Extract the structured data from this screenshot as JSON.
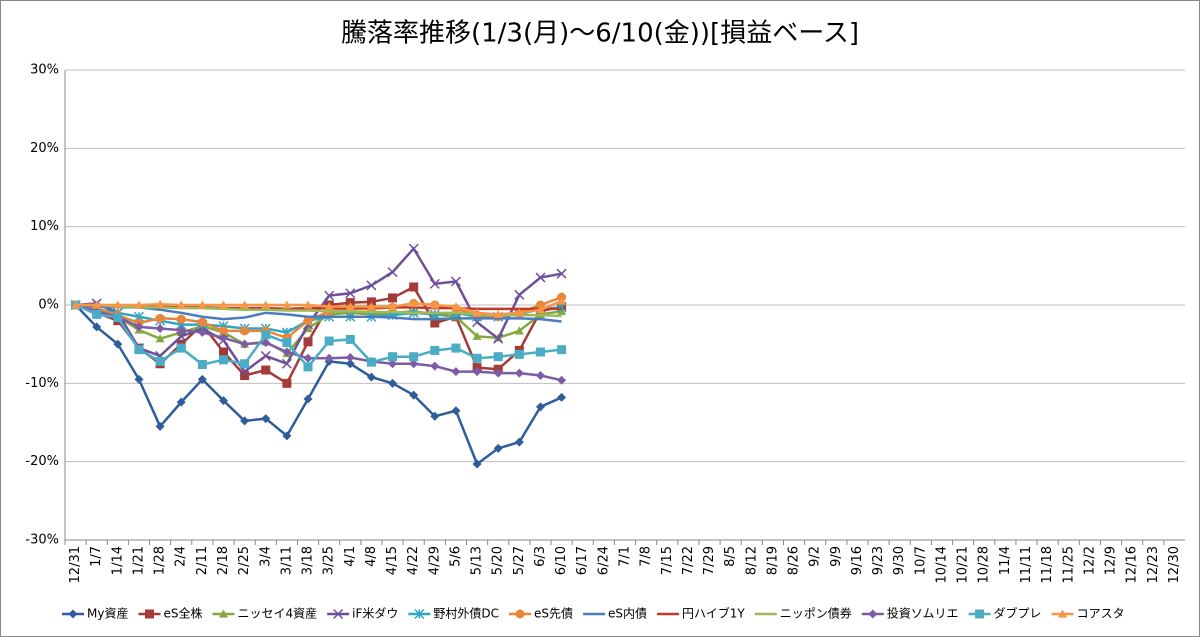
{
  "chart_data": {
    "type": "line",
    "title": "騰落率推移(1/3(月)～6/10(金))[損益ベース]",
    "categories": [
      "12/31",
      "1/7",
      "1/14",
      "1/21",
      "1/28",
      "2/4",
      "2/11",
      "2/18",
      "2/25",
      "3/4",
      "3/11",
      "3/18",
      "3/25",
      "4/1",
      "4/8",
      "4/15",
      "4/22",
      "4/29",
      "5/6",
      "5/13",
      "5/20",
      "5/27",
      "6/3",
      "6/10",
      "6/17",
      "6/24",
      "7/1",
      "7/8",
      "7/15",
      "7/22",
      "7/29",
      "8/5",
      "8/12",
      "8/19",
      "8/26",
      "9/2",
      "9/9",
      "9/16",
      "9/23",
      "9/30",
      "10/7",
      "10/14",
      "10/21",
      "10/28",
      "11/4",
      "11/11",
      "11/18",
      "11/25",
      "12/2",
      "12/9",
      "12/16",
      "12/23",
      "12/30"
    ],
    "ylim": [
      -30,
      30
    ],
    "yticks": [
      {
        "value": -30,
        "label": "-30%"
      },
      {
        "value": -20,
        "label": "-20%"
      },
      {
        "value": -10,
        "label": "-10%"
      },
      {
        "value": 0,
        "label": "0%"
      },
      {
        "value": 10,
        "label": "10%"
      },
      {
        "value": 20,
        "label": "20%"
      },
      {
        "value": 30,
        "label": "30%"
      }
    ],
    "grid": true,
    "legend": "bottom",
    "series": [
      {
        "name": "My資産",
        "color": "#2f5d9b",
        "marker": "diamond",
        "values": [
          0,
          -2.8,
          -5,
          -9.5,
          -15.5,
          -12.4,
          -9.5,
          -12.2,
          -14.8,
          -14.5,
          -16.7,
          -12,
          -7.2,
          -7.5,
          -9.2,
          -10,
          -11.5,
          -14.2,
          -13.5,
          -20.3,
          -18.3,
          -17.5,
          -13,
          -11.8,
          null,
          null,
          null,
          null,
          null,
          null,
          null,
          null,
          null,
          null,
          null,
          null,
          null,
          null,
          null,
          null,
          null,
          null,
          null,
          null,
          null,
          null,
          null,
          null,
          null,
          null,
          null,
          null,
          null
        ]
      },
      {
        "name": "eS全株",
        "color": "#a33b37",
        "marker": "square",
        "values": [
          0,
          -1,
          -2,
          -5.5,
          -7.5,
          -5,
          -2.5,
          -6,
          -9,
          -8.3,
          -10,
          -4.7,
          0,
          0.3,
          0.4,
          0.9,
          2.3,
          -2.3,
          -1.5,
          -8,
          -8.2,
          -5.8,
          -0.8,
          -0.2,
          null,
          null,
          null,
          null,
          null,
          null,
          null,
          null,
          null,
          null,
          null,
          null,
          null,
          null,
          null,
          null,
          null,
          null,
          null,
          null,
          null,
          null,
          null,
          null,
          null,
          null,
          null,
          null,
          null
        ]
      },
      {
        "name": "ニッセイ4資産",
        "color": "#86a840",
        "marker": "triangle",
        "values": [
          0,
          -0.8,
          -1.5,
          -3.2,
          -4.3,
          -3.5,
          -2.7,
          -3.5,
          -5,
          -4.7,
          -6.2,
          -3,
          -1.2,
          -1,
          -1.2,
          -1,
          -0.8,
          -1.2,
          -1.5,
          -4,
          -4.2,
          -3.3,
          -1.2,
          -0.8,
          null,
          null,
          null,
          null,
          null,
          null,
          null,
          null,
          null,
          null,
          null,
          null,
          null,
          null,
          null,
          null,
          null,
          null,
          null,
          null,
          null,
          null,
          null,
          null,
          null,
          null,
          null,
          null,
          null
        ]
      },
      {
        "name": "iF米ダウ",
        "color": "#6e4f9a",
        "marker": "x",
        "values": [
          0,
          0.2,
          -1,
          -5.5,
          -6.5,
          -4,
          -3,
          -4.5,
          -8.5,
          -6.5,
          -7.5,
          -2.5,
          1.2,
          1.5,
          2.5,
          4.2,
          7.2,
          2.7,
          3,
          -2.2,
          -4.3,
          1.3,
          3.5,
          4,
          null,
          null,
          null,
          null,
          null,
          null,
          null,
          null,
          null,
          null,
          null,
          null,
          null,
          null,
          null,
          null,
          null,
          null,
          null,
          null,
          null,
          null,
          null,
          null,
          null,
          null,
          null,
          null,
          null
        ]
      },
      {
        "name": "野村外債DC",
        "color": "#31a6c3",
        "marker": "star",
        "values": [
          0,
          -0.5,
          -1,
          -1.5,
          -2,
          -2.5,
          -2.5,
          -2.7,
          -3,
          -3,
          -3.5,
          -2,
          -1.5,
          -1.5,
          -1.5,
          -1.3,
          -1,
          -1.2,
          -1,
          -1.5,
          -1.5,
          -1.2,
          -0.5,
          -0.3,
          null,
          null,
          null,
          null,
          null,
          null,
          null,
          null,
          null,
          null,
          null,
          null,
          null,
          null,
          null,
          null,
          null,
          null,
          null,
          null,
          null,
          null,
          null,
          null,
          null,
          null,
          null,
          null,
          null
        ]
      },
      {
        "name": "eS先債",
        "color": "#e8873a",
        "marker": "circle",
        "values": [
          0,
          -0.5,
          -1.3,
          -2.3,
          -1.7,
          -1.8,
          -2.2,
          -3.3,
          -3.3,
          -3.3,
          -4.2,
          -2,
          -0.8,
          -0.5,
          -0.5,
          -0.3,
          0.2,
          0,
          -0.5,
          -1.3,
          -1.5,
          -1,
          0,
          1,
          null,
          null,
          null,
          null,
          null,
          null,
          null,
          null,
          null,
          null,
          null,
          null,
          null,
          null,
          null,
          null,
          null,
          null,
          null,
          null,
          null,
          null,
          null,
          null,
          null,
          null,
          null,
          null,
          null
        ]
      },
      {
        "name": "eS内債",
        "color": "#4a7dc0",
        "marker": "none",
        "values": [
          0,
          -0.2,
          -0.3,
          -0.3,
          -0.6,
          -1,
          -1.5,
          -1.8,
          -1.6,
          -1,
          -1.2,
          -1.5,
          -1.5,
          -1.5,
          -1.5,
          -1.6,
          -1.8,
          -1.8,
          -1.7,
          -1.7,
          -1.7,
          -1.7,
          -1.8,
          -2.1,
          null,
          null,
          null,
          null,
          null,
          null,
          null,
          null,
          null,
          null,
          null,
          null,
          null,
          null,
          null,
          null,
          null,
          null,
          null,
          null,
          null,
          null,
          null,
          null,
          null,
          null,
          null,
          null,
          null
        ]
      },
      {
        "name": "円ハイブ1Y",
        "color": "#c0392b",
        "marker": "none",
        "values": [
          0,
          0,
          -0.1,
          -0.2,
          -0.2,
          -0.3,
          -0.3,
          -0.4,
          -0.4,
          -0.4,
          -0.5,
          -0.4,
          -0.4,
          -0.4,
          -0.3,
          -0.3,
          -0.3,
          -0.4,
          -0.4,
          -0.5,
          -0.5,
          -0.5,
          -0.5,
          -0.5,
          null,
          null,
          null,
          null,
          null,
          null,
          null,
          null,
          null,
          null,
          null,
          null,
          null,
          null,
          null,
          null,
          null,
          null,
          null,
          null,
          null,
          null,
          null,
          null,
          null,
          null,
          null,
          null,
          null
        ]
      },
      {
        "name": "ニッポン債券",
        "color": "#9bbb59",
        "marker": "none",
        "values": [
          0,
          0,
          -0.2,
          -0.3,
          -0.3,
          -0.4,
          -0.4,
          -0.5,
          -0.6,
          -0.6,
          -0.7,
          -0.7,
          -0.8,
          -0.8,
          -0.9,
          -0.9,
          -1,
          -1,
          -1,
          -1.2,
          -1.3,
          -1.3,
          -1.3,
          -1.4,
          null,
          null,
          null,
          null,
          null,
          null,
          null,
          null,
          null,
          null,
          null,
          null,
          null,
          null,
          null,
          null,
          null,
          null,
          null,
          null,
          null,
          null,
          null,
          null,
          null,
          null,
          null,
          null,
          null
        ]
      },
      {
        "name": "投資ソムリエ",
        "color": "#7d5ba6",
        "marker": "diamond",
        "values": [
          0,
          -0.8,
          -1.5,
          -2.8,
          -3,
          -3.2,
          -3.5,
          -4.2,
          -5,
          -4.8,
          -6,
          -6.8,
          -6.8,
          -6.7,
          -7.2,
          -7.5,
          -7.5,
          -7.8,
          -8.5,
          -8.5,
          -8.7,
          -8.7,
          -9,
          -9.6,
          null,
          null,
          null,
          null,
          null,
          null,
          null,
          null,
          null,
          null,
          null,
          null,
          null,
          null,
          null,
          null,
          null,
          null,
          null,
          null,
          null,
          null,
          null,
          null,
          null,
          null,
          null,
          null,
          null
        ]
      },
      {
        "name": "ダブプレ",
        "color": "#4bacc6",
        "marker": "square",
        "values": [
          0,
          -1.2,
          -1.6,
          -5.7,
          -7.2,
          -5.5,
          -7.6,
          -7,
          -7.5,
          -3.8,
          -4.8,
          -7.9,
          -4.6,
          -4.4,
          -7.3,
          -6.6,
          -6.6,
          -5.8,
          -5.5,
          -6.8,
          -6.6,
          -6.3,
          -6,
          -5.7,
          null,
          null,
          null,
          null,
          null,
          null,
          null,
          null,
          null,
          null,
          null,
          null,
          null,
          null,
          null,
          null,
          null,
          null,
          null,
          null,
          null,
          null,
          null,
          null,
          null,
          null,
          null,
          null,
          null
        ]
      },
      {
        "name": "コアスタ",
        "color": "#f79646",
        "marker": "triangle",
        "values": [
          0,
          0,
          0,
          0,
          0.1,
          0,
          0,
          0,
          0,
          0,
          0,
          0,
          -0.2,
          -0.2,
          -0.2,
          -0.2,
          0.2,
          0,
          -0.2,
          -1,
          -1.2,
          -1,
          -0.6,
          0.5,
          null,
          null,
          null,
          null,
          null,
          null,
          null,
          null,
          null,
          null,
          null,
          null,
          null,
          null,
          null,
          null,
          null,
          null,
          null,
          null,
          null,
          null,
          null,
          null,
          null,
          null,
          null,
          null,
          null
        ]
      }
    ]
  }
}
